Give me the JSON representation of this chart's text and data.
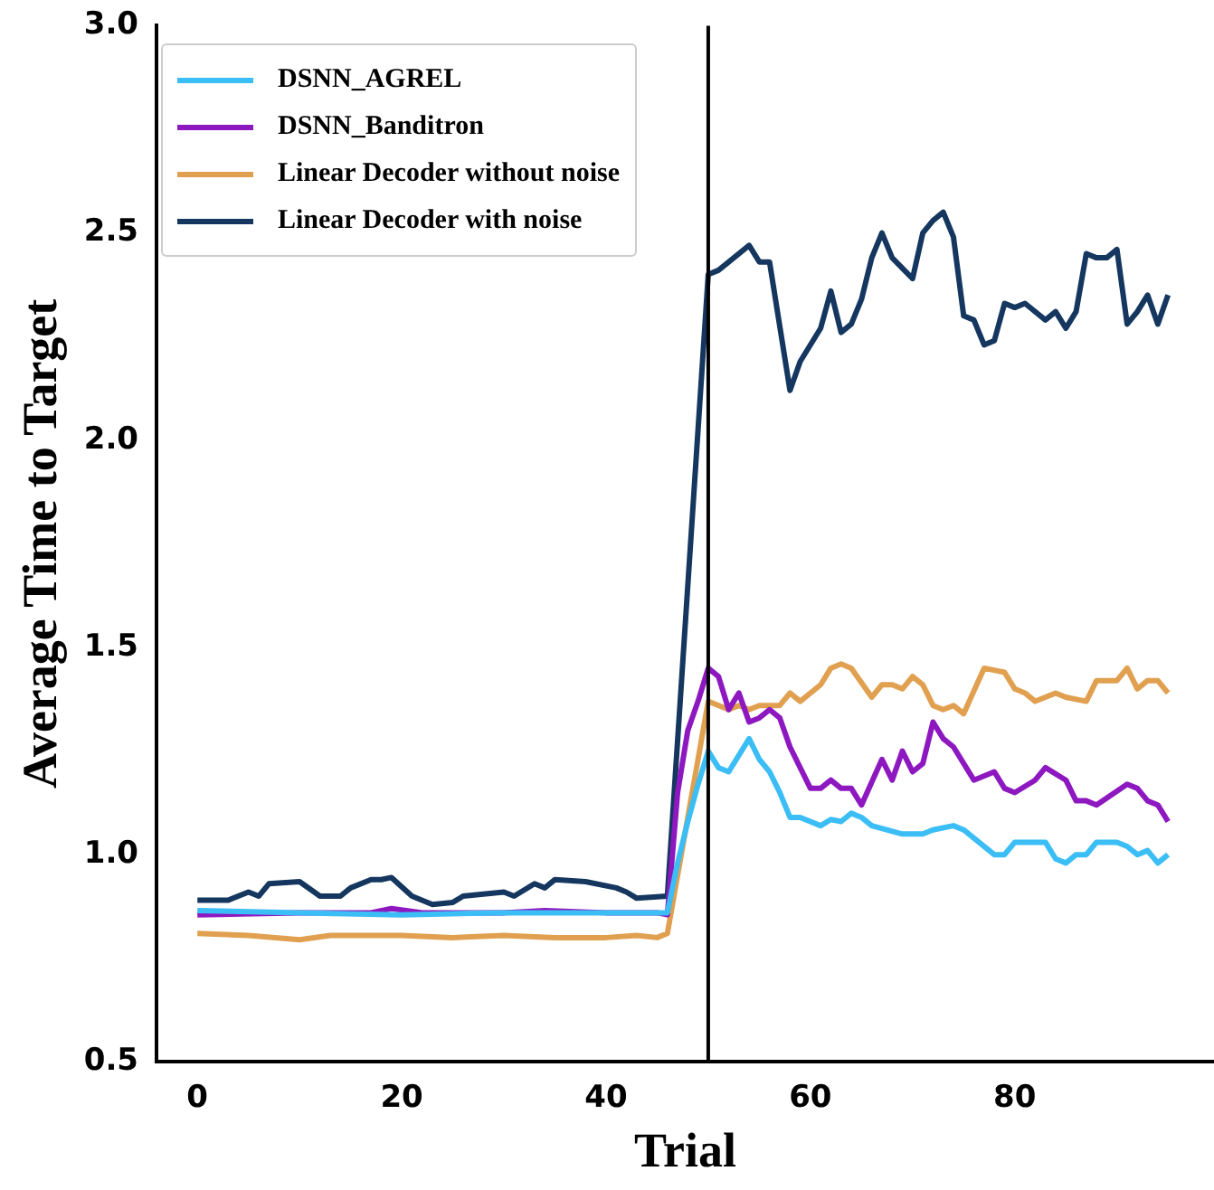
{
  "chart_data": {
    "type": "line",
    "xlabel": "Trial",
    "ylabel": "Average Time to Target",
    "xlim": [
      -4,
      99.5
    ],
    "xticks": [
      0,
      20,
      40,
      60,
      80
    ],
    "ylim": [
      0.5,
      3.0
    ],
    "yticks": [
      {
        "value": 0.5,
        "label": "0.5"
      },
      {
        "value": 1,
        "label": "1.0"
      },
      {
        "value": 1.5,
        "label": "1.5"
      },
      {
        "value": 2,
        "label": "2.0"
      },
      {
        "value": 2.5,
        "label": "2.5"
      },
      {
        "value": 3,
        "label": "3.0"
      }
    ],
    "legend": "top left",
    "marker": "none",
    "line_style": "solid",
    "ref_lines": [
      {
        "axis": "x",
        "value": 50,
        "color": "#000000"
      }
    ],
    "series": [
      {
        "name": "DSNN_AGREL",
        "color": "#3bbdf5",
        "x": [
          0,
          10,
          20,
          30,
          40,
          46,
          47,
          48,
          49,
          50,
          51,
          52,
          54,
          55,
          56,
          57,
          58,
          59,
          61,
          62,
          63,
          64,
          65,
          66,
          69,
          71,
          72,
          74,
          75,
          76,
          78,
          79,
          80,
          81,
          82,
          83,
          84,
          85,
          86,
          87,
          88,
          90,
          91,
          92,
          93,
          94,
          95
        ],
        "values": [
          0.865,
          0.86,
          0.855,
          0.86,
          0.86,
          0.86,
          0.98,
          1.08,
          1.17,
          1.25,
          1.21,
          1.2,
          1.28,
          1.23,
          1.2,
          1.15,
          1.09,
          1.09,
          1.07,
          1.085,
          1.08,
          1.1,
          1.09,
          1.07,
          1.05,
          1.05,
          1.06,
          1.07,
          1.06,
          1.04,
          1.0,
          1.0,
          1.03,
          1.03,
          1.03,
          1.03,
          0.99,
          0.98,
          1.0,
          1.0,
          1.03,
          1.03,
          1.02,
          1.0,
          1.01,
          0.98,
          1.0
        ]
      },
      {
        "name": "DSNN_Banditron",
        "color": "#8e18c0",
        "x": [
          0,
          10,
          17,
          19,
          22,
          30,
          34,
          40,
          45,
          46,
          47,
          48,
          49,
          50,
          51,
          52,
          53,
          54,
          55,
          56,
          57,
          58,
          60,
          61,
          62,
          63,
          64,
          65,
          67,
          68,
          69,
          70,
          71,
          72,
          73,
          74,
          76,
          78,
          79,
          80,
          82,
          83,
          85,
          86,
          87,
          88,
          91,
          92,
          93,
          94,
          95
        ],
        "values": [
          0.855,
          0.86,
          0.86,
          0.87,
          0.86,
          0.86,
          0.865,
          0.86,
          0.86,
          0.855,
          1.15,
          1.3,
          1.37,
          1.45,
          1.43,
          1.35,
          1.39,
          1.32,
          1.33,
          1.35,
          1.33,
          1.26,
          1.16,
          1.16,
          1.18,
          1.16,
          1.16,
          1.12,
          1.23,
          1.18,
          1.25,
          1.2,
          1.22,
          1.32,
          1.28,
          1.26,
          1.18,
          1.2,
          1.16,
          1.15,
          1.18,
          1.21,
          1.18,
          1.13,
          1.13,
          1.12,
          1.17,
          1.16,
          1.13,
          1.12,
          1.08
        ]
      },
      {
        "name": "Linear Decoder without noise",
        "color": "#e0a050",
        "x": [
          0,
          5,
          10,
          13,
          20,
          25,
          30,
          35,
          40,
          43,
          45,
          46,
          50,
          52,
          53,
          54,
          55,
          57,
          58,
          59,
          61,
          62,
          63,
          64,
          66,
          67,
          68,
          69,
          70,
          71,
          72,
          73,
          74,
          75,
          77,
          79,
          80,
          81,
          82,
          84,
          85,
          87,
          88,
          90,
          91,
          92,
          93,
          94,
          95
        ],
        "values": [
          0.81,
          0.805,
          0.795,
          0.805,
          0.805,
          0.8,
          0.805,
          0.8,
          0.8,
          0.805,
          0.8,
          0.81,
          1.37,
          1.35,
          1.36,
          1.35,
          1.36,
          1.36,
          1.39,
          1.37,
          1.41,
          1.45,
          1.46,
          1.45,
          1.38,
          1.41,
          1.41,
          1.4,
          1.43,
          1.41,
          1.36,
          1.35,
          1.36,
          1.34,
          1.45,
          1.44,
          1.4,
          1.39,
          1.37,
          1.39,
          1.38,
          1.37,
          1.42,
          1.42,
          1.45,
          1.4,
          1.42,
          1.42,
          1.39
        ]
      },
      {
        "name": "Linear Decoder with noise",
        "color": "#14365f",
        "x": [
          0,
          3,
          5,
          6,
          7,
          10,
          12,
          14,
          15,
          17,
          18,
          19,
          21,
          23,
          25,
          26,
          30,
          31,
          33,
          34,
          35,
          38,
          41,
          42,
          43,
          46,
          50,
          51,
          54,
          55,
          56,
          58,
          59,
          61,
          62,
          63,
          64,
          65,
          66,
          67,
          68,
          70,
          71,
          72,
          73,
          74,
          75,
          76,
          77,
          78,
          79,
          80,
          81,
          83,
          84,
          85,
          86,
          87,
          88,
          89,
          90,
          91,
          92,
          93,
          94,
          95
        ],
        "values": [
          0.89,
          0.89,
          0.91,
          0.9,
          0.93,
          0.935,
          0.9,
          0.9,
          0.92,
          0.94,
          0.94,
          0.945,
          0.9,
          0.88,
          0.885,
          0.9,
          0.91,
          0.9,
          0.93,
          0.92,
          0.94,
          0.935,
          0.92,
          0.91,
          0.895,
          0.9,
          2.4,
          2.41,
          2.47,
          2.43,
          2.43,
          2.12,
          2.19,
          2.27,
          2.36,
          2.26,
          2.28,
          2.34,
          2.44,
          2.5,
          2.44,
          2.39,
          2.5,
          2.53,
          2.55,
          2.49,
          2.3,
          2.29,
          2.23,
          2.24,
          2.33,
          2.32,
          2.33,
          2.29,
          2.31,
          2.27,
          2.31,
          2.45,
          2.44,
          2.44,
          2.46,
          2.28,
          2.31,
          2.35,
          2.28,
          2.35
        ]
      }
    ]
  }
}
